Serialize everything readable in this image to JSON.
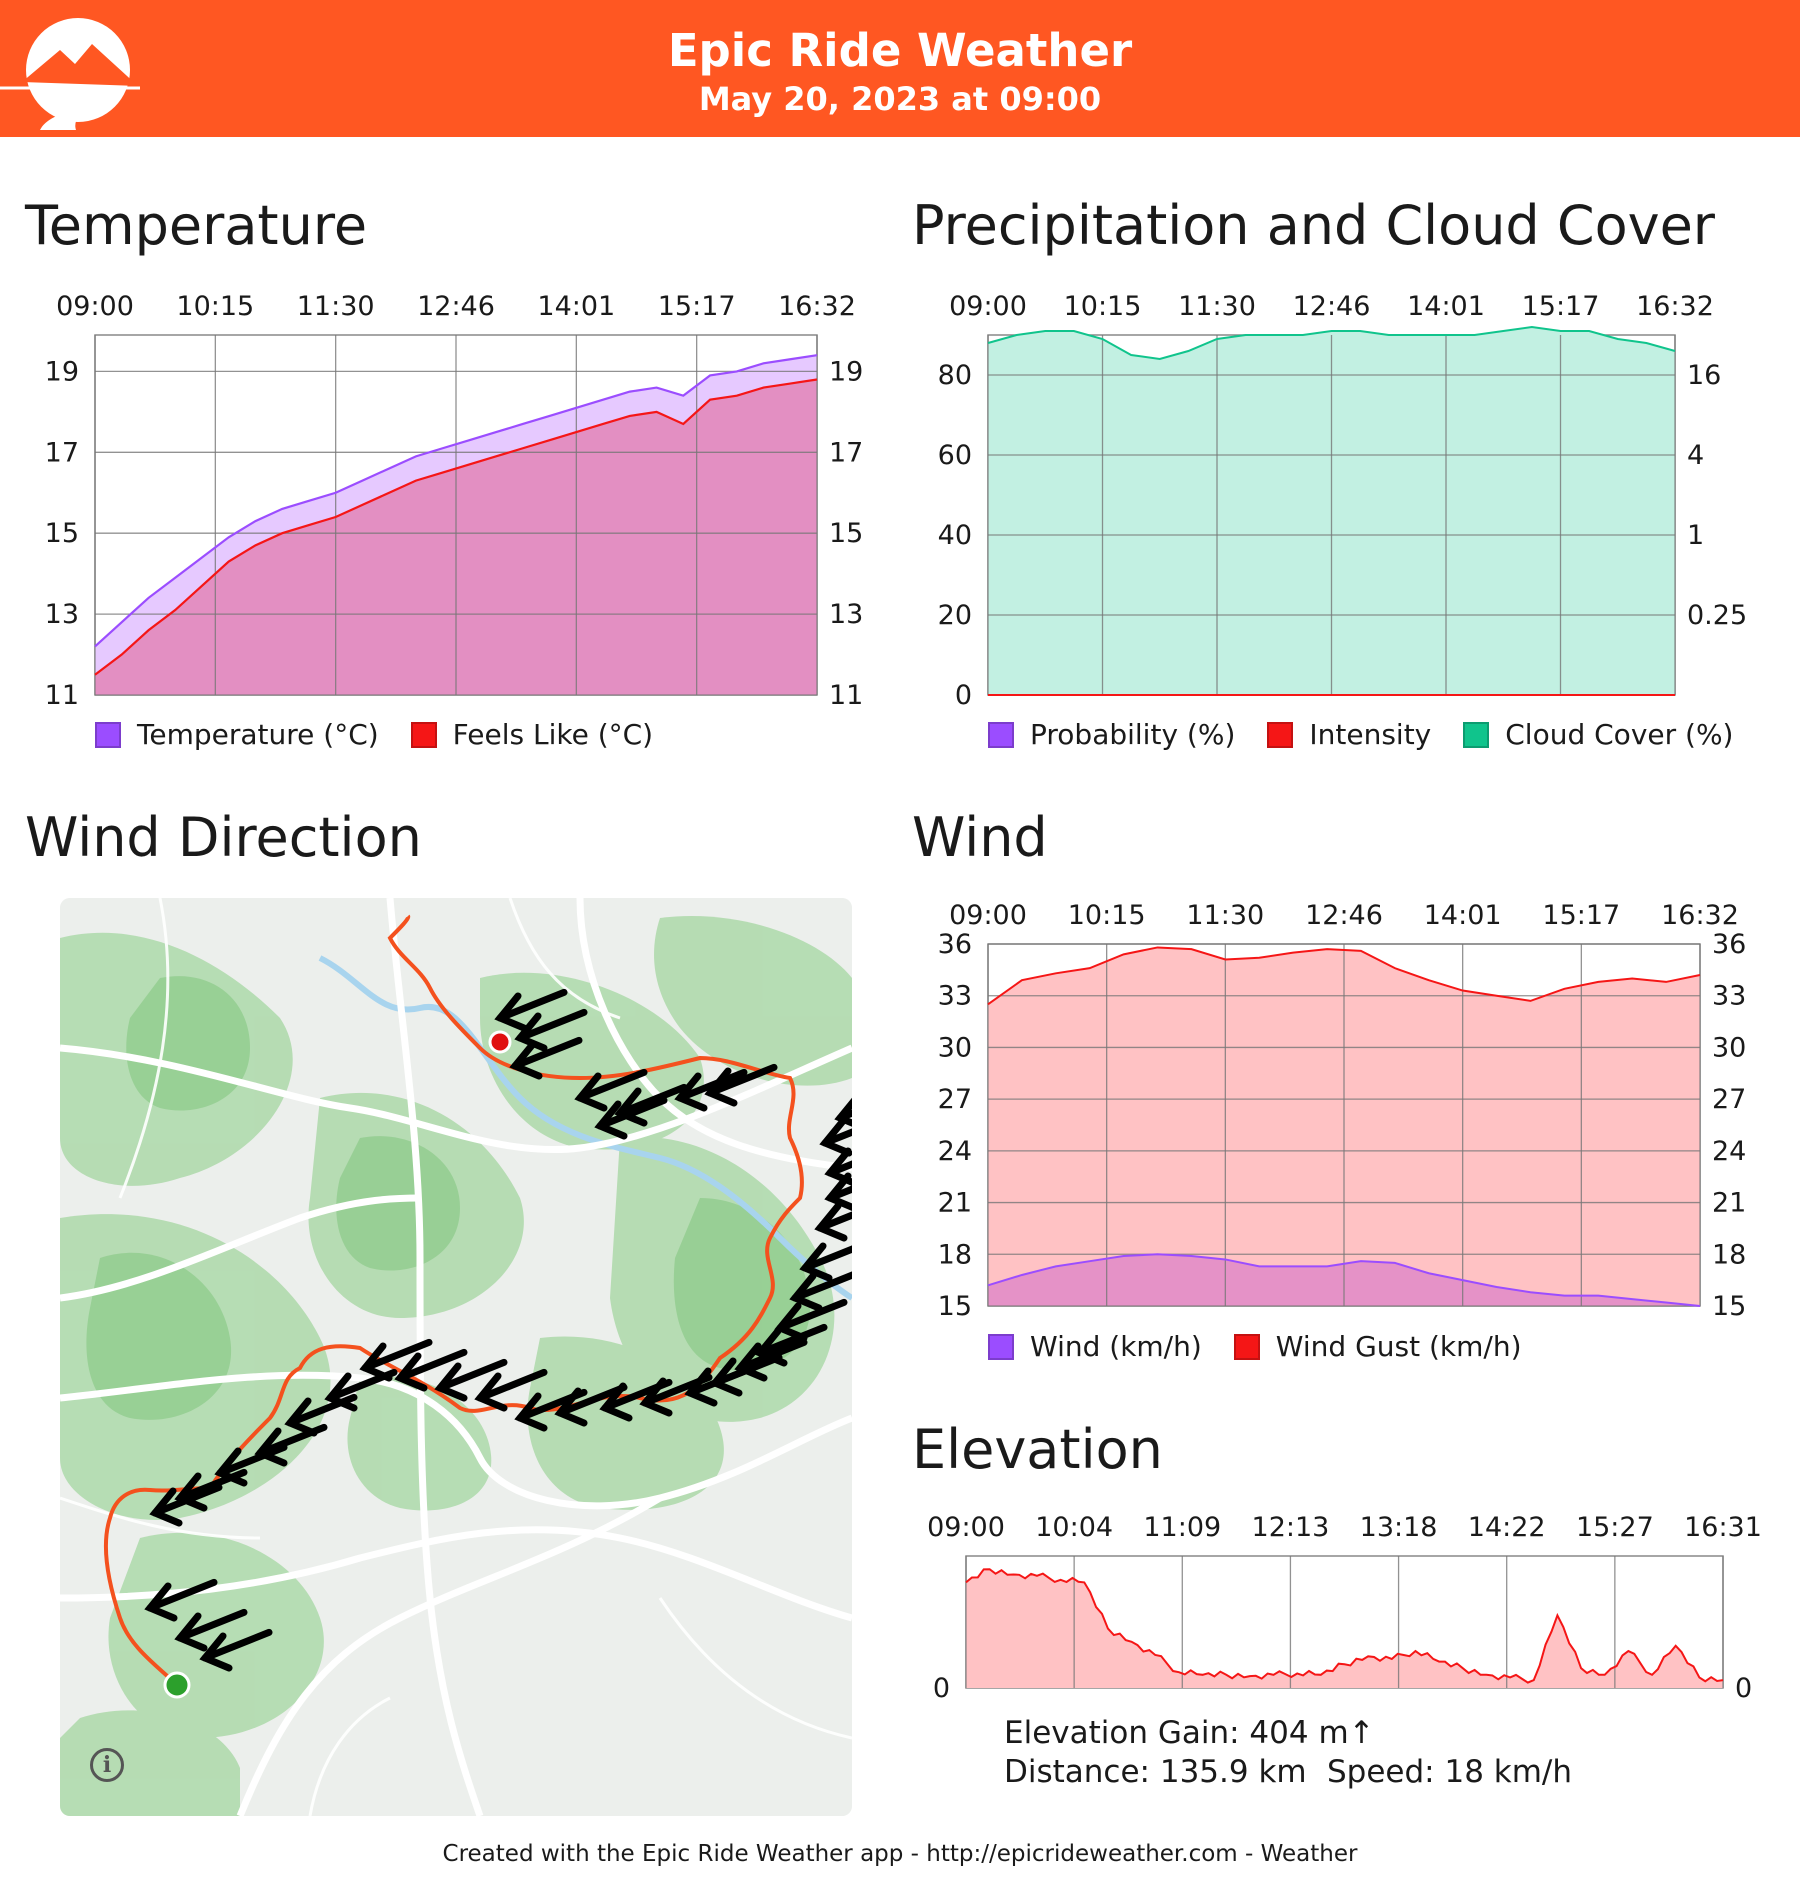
{
  "header": {
    "title": "Epic Ride Weather",
    "subtitle": "May 20, 2023 at 09:00",
    "bg_color": "#ff5722"
  },
  "temperature": {
    "title": "Temperature",
    "chart_data": {
      "type": "area",
      "x_ticks": [
        "09:00",
        "10:15",
        "11:30",
        "12:46",
        "14:01",
        "15:17",
        "16:32"
      ],
      "y_ticks": [
        11,
        13,
        15,
        17,
        19
      ],
      "ylim": [
        11,
        19.9
      ],
      "grid": true,
      "legend_position": "bottom",
      "series": [
        {
          "name": "Temperature (°C)",
          "color": "#9b4dff",
          "values": [
            12.2,
            12.8,
            13.4,
            13.9,
            14.4,
            14.9,
            15.3,
            15.6,
            15.8,
            16.0,
            16.3,
            16.6,
            16.9,
            17.1,
            17.3,
            17.5,
            17.7,
            17.9,
            18.1,
            18.3,
            18.5,
            18.6,
            18.4,
            18.9,
            19.0,
            19.2,
            19.3,
            19.4
          ]
        },
        {
          "name": "Feels Like (°C)",
          "color": "#f51616",
          "values": [
            11.5,
            12.0,
            12.6,
            13.1,
            13.7,
            14.3,
            14.7,
            15.0,
            15.2,
            15.4,
            15.7,
            16.0,
            16.3,
            16.5,
            16.7,
            16.9,
            17.1,
            17.3,
            17.5,
            17.7,
            17.9,
            18.0,
            17.7,
            18.3,
            18.4,
            18.6,
            18.7,
            18.8
          ]
        }
      ]
    }
  },
  "precipitation": {
    "title": "Precipitation and Cloud Cover",
    "chart_data": {
      "type": "area",
      "x_ticks": [
        "09:00",
        "10:15",
        "11:30",
        "12:46",
        "14:01",
        "15:17",
        "16:32"
      ],
      "y_ticks_left": [
        0,
        20,
        40,
        60,
        80
      ],
      "y_ticks_right": [
        "0.25",
        "1",
        "4",
        "16"
      ],
      "ylim": [
        0,
        90
      ],
      "grid": true,
      "legend_position": "bottom",
      "series": [
        {
          "name": "Probability (%)",
          "color": "#9b4dff",
          "values": [
            0,
            0,
            0,
            0,
            0,
            0,
            0,
            0,
            0,
            0,
            0,
            0,
            0,
            0,
            0,
            0,
            0,
            0,
            0,
            0,
            0,
            0,
            0,
            0,
            0
          ]
        },
        {
          "name": "Intensity",
          "color": "#f51616",
          "values": [
            0,
            0,
            0,
            0,
            0,
            0,
            0,
            0,
            0,
            0,
            0,
            0,
            0,
            0,
            0,
            0,
            0,
            0,
            0,
            0,
            0,
            0,
            0,
            0,
            0
          ]
        },
        {
          "name": "Cloud Cover (%)",
          "color": "#10c48c",
          "values": [
            88,
            90,
            91,
            91,
            89,
            85,
            84,
            86,
            89,
            90,
            90,
            90,
            91,
            91,
            90,
            90,
            90,
            90,
            91,
            92,
            91,
            91,
            89,
            88,
            86
          ]
        }
      ]
    }
  },
  "wind_direction": {
    "title": "Wind Direction",
    "info_icon": "info-icon",
    "route_color": "#f4511e",
    "start_color": "#2ca02c",
    "end_color": "#e01010"
  },
  "wind": {
    "title": "Wind",
    "chart_data": {
      "type": "area",
      "x_ticks": [
        "09:00",
        "10:15",
        "11:30",
        "12:46",
        "14:01",
        "15:17",
        "16:32"
      ],
      "y_ticks": [
        15,
        18,
        21,
        24,
        27,
        30,
        33,
        36
      ],
      "ylim": [
        15,
        36
      ],
      "grid": true,
      "legend_position": "bottom",
      "series": [
        {
          "name": "Wind (km/h)",
          "color": "#9b4dff",
          "values": [
            16.2,
            16.8,
            17.3,
            17.6,
            17.9,
            18.0,
            17.9,
            17.7,
            17.3,
            17.3,
            17.3,
            17.6,
            17.5,
            16.9,
            16.5,
            16.1,
            15.8,
            15.6,
            15.6,
            15.4,
            15.2,
            15.0
          ]
        },
        {
          "name": "Wind Gust (km/h)",
          "color": "#f51616",
          "values": [
            32.5,
            33.9,
            34.3,
            34.6,
            35.4,
            35.8,
            35.7,
            35.1,
            35.2,
            35.5,
            35.7,
            35.6,
            34.6,
            33.9,
            33.3,
            33.0,
            32.7,
            33.4,
            33.8,
            34.0,
            33.8,
            34.2
          ]
        }
      ]
    }
  },
  "elevation": {
    "title": "Elevation",
    "chart_data": {
      "type": "area",
      "x_ticks": [
        "09:00",
        "10:04",
        "11:09",
        "12:13",
        "13:18",
        "14:22",
        "15:27",
        "16:31"
      ],
      "y_ticks": [
        0
      ],
      "grid": true,
      "series": [
        {
          "name": "Elevation",
          "color": "#f51616",
          "values": [
            0.8,
            0.9,
            0.86,
            0.85,
            0.82,
            0.8,
            0.45,
            0.35,
            0.25,
            0.12,
            0.1,
            0.1,
            0.09,
            0.1,
            0.11,
            0.1,
            0.18,
            0.24,
            0.22,
            0.28,
            0.2,
            0.15,
            0.1,
            0.08,
            0.06,
            0.55,
            0.15,
            0.1,
            0.28,
            0.1,
            0.32,
            0.08,
            0.06
          ]
        }
      ]
    },
    "stats": {
      "gain": "Elevation Gain: 404 m↑",
      "distance": "Distance: 135.9 km",
      "speed": "Speed: 18 km/h"
    }
  },
  "footer": "Created with the Epic Ride Weather app - http://epicrideweather.com -  Weather"
}
